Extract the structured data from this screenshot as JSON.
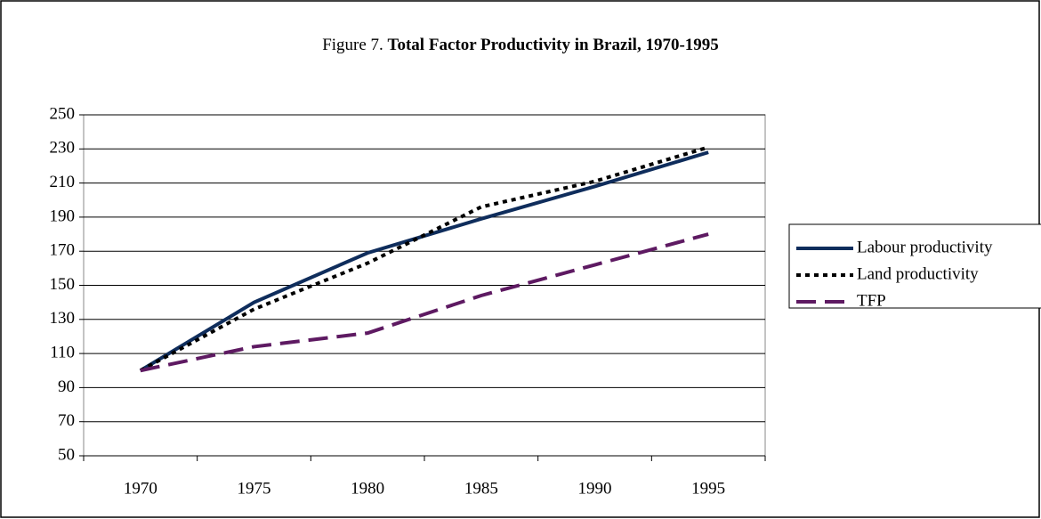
{
  "chart_data": {
    "type": "line",
    "figure_label": "Figure 7.",
    "title": "Total Factor Productivity in Brazil, 1970-1995",
    "categories": [
      "1970",
      "1975",
      "1980",
      "1985",
      "1990",
      "1995"
    ],
    "series": [
      {
        "name": "Labour productivity",
        "color": "#0f2d5c",
        "dash": "solid",
        "values": [
          100,
          140,
          169,
          189,
          208,
          228
        ]
      },
      {
        "name": "Land productivity",
        "color": "#000000",
        "dash": "dotted",
        "values": [
          100,
          136,
          163,
          196,
          211,
          231
        ]
      },
      {
        "name": "TFP",
        "color": "#5e1a62",
        "dash": "dashed",
        "values": [
          100,
          114,
          122,
          144,
          162,
          180
        ]
      }
    ],
    "ylim": [
      50,
      250
    ],
    "yticks": [
      50,
      70,
      90,
      110,
      130,
      150,
      170,
      190,
      210,
      230,
      250
    ],
    "grid": true,
    "legend": "right"
  }
}
